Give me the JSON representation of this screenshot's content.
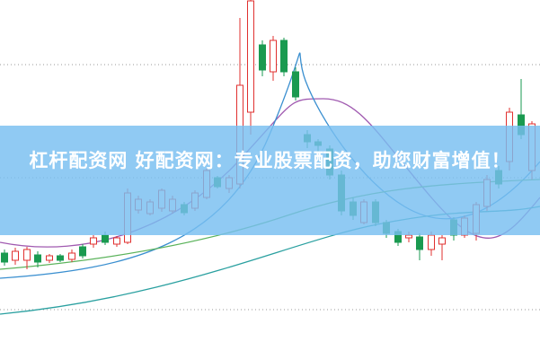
{
  "banner": {
    "title": "杠杆配资网 好配资网：专业股票配资，助您财富增值！"
  }
}
